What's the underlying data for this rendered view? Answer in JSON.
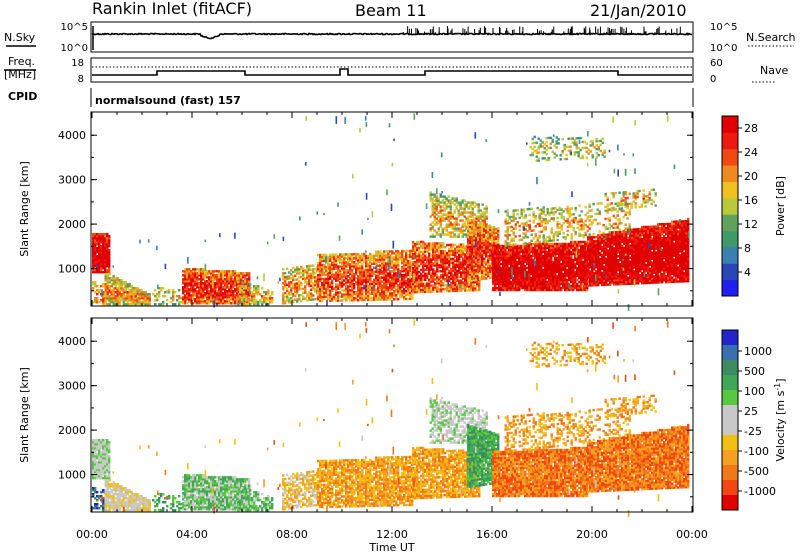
{
  "header": {
    "station": "Rankin Inlet (fitACF)",
    "beam": "Beam 11",
    "date": "21/Jan/2010"
  },
  "panels": {
    "nsky_label": "N.Sky",
    "nsky_ticks": [
      "10^5",
      "10^0"
    ],
    "nsearch_label": "N.Search",
    "nsearch_ticks": [
      "10^5",
      "10^0"
    ],
    "freq_label_1": "Freq.",
    "freq_label_2": "[MHz]",
    "freq_ticks": [
      "18",
      "8"
    ],
    "nave_label": "Nave",
    "nave_ticks": [
      "60",
      "0"
    ],
    "cpid_label": "CPID",
    "cpid_text": "normalsound (fast) 157"
  },
  "colors": {
    "power_scale": [
      "#1f1ff0",
      "#2a46b8",
      "#3b7fb0",
      "#3f9a6a",
      "#5fa35a",
      "#b8c93a",
      "#f0c020",
      "#f08a20",
      "#f04a12",
      "#ee1a10",
      "#e00000"
    ],
    "velocity_scale": [
      "#2424cc",
      "#3a70b0",
      "#3c8c60",
      "#3fa858",
      "#58c840",
      "#c8c8c8",
      "#c8c8c8",
      "#f2c010",
      "#f5a020",
      "#f07818",
      "#f04810",
      "#e00000"
    ]
  },
  "chart_data": [
    {
      "type": "heatmap",
      "name": "power",
      "ylabel": "Slant Range [km]",
      "xlabel": "",
      "xlim": [
        0,
        24
      ],
      "ylim": [
        180,
        4500
      ],
      "x_ticks": [],
      "y_ticks": [
        "1000",
        "2000",
        "3000",
        "4000"
      ],
      "colorbar_label": "Power [dB]",
      "colorbar_ticks": [
        "4",
        "8",
        "12",
        "16",
        "20",
        "24",
        "28"
      ],
      "colorbar_range": [
        0,
        30
      ],
      "grid": false
    },
    {
      "type": "heatmap",
      "name": "velocity",
      "ylabel": "Slant Range [km]",
      "xlabel": "Time UT",
      "xlim": [
        0,
        24
      ],
      "ylim": [
        180,
        4500
      ],
      "x_ticks": [
        "00:00",
        "04:00",
        "08:00",
        "12:00",
        "16:00",
        "20:00",
        "00:00"
      ],
      "y_ticks": [
        "1000",
        "2000",
        "3000",
        "4000"
      ],
      "colorbar_label": "Velocity [m s",
      "colorbar_label_sup": "-1",
      "colorbar_label_end": "]",
      "colorbar_ticks": [
        "1000",
        "500",
        "100",
        "25",
        "-25",
        "-100",
        "-500",
        "-1000"
      ],
      "grid": false
    }
  ]
}
